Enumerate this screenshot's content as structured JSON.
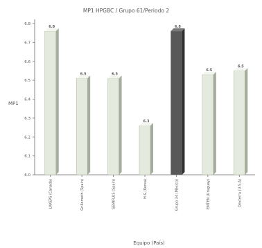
{
  "chart_data": {
    "type": "bar",
    "title": "MP1 HPGBC / Grupo 61/Periodo 2",
    "xlabel": "Equipo (País)",
    "ylabel": "MP1",
    "ylim": [
      6.0,
      6.8
    ],
    "yticks": [
      "6.0",
      "6.1",
      "6.2",
      "6.3",
      "6.4",
      "6.5",
      "6.6",
      "6.7",
      "6.8"
    ],
    "categories": [
      "LAKEPS (Canada)",
      "Grillometh (Spain)",
      "SEMIFLUS (Spain)",
      "H.G (Korea)",
      "Grupo 34 (México)",
      "EMTEN (Uruguay)",
      "Dexterra (U.S.A)"
    ],
    "values": [
      6.76,
      6.51,
      6.51,
      6.26,
      6.76,
      6.53,
      6.55
    ],
    "value_labels": [
      "6.8",
      "6.5",
      "6.5",
      "6.3",
      "6.8",
      "6.5",
      "6.5"
    ],
    "highlight_index": 4,
    "colors": {
      "bar_face": "#e4ebde",
      "bar_side": "#a5ad9d",
      "bar_top": "#f3f6ef",
      "highlight_face": "#585858",
      "highlight_side": "#2e2e2e",
      "highlight_top": "#7a7a7a",
      "axis": "#8a8a8a",
      "text": "#555555"
    },
    "grid": false,
    "legend": "none"
  }
}
